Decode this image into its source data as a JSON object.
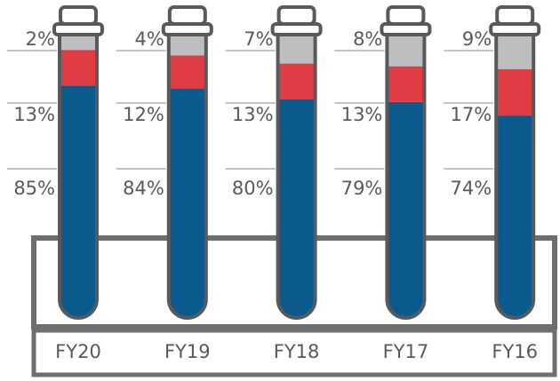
{
  "chart_data": {
    "type": "tube-stack",
    "categories": [
      "FY20",
      "FY19",
      "FY18",
      "FY17",
      "FY16"
    ],
    "series": [
      {
        "color": "#bcbec0",
        "values": [
          2,
          4,
          7,
          8,
          9
        ],
        "value_labels": [
          "2%",
          "4%",
          "7%",
          "8%",
          "9%"
        ]
      },
      {
        "color": "#e03c44",
        "values": [
          13,
          12,
          13,
          13,
          17
        ],
        "value_labels": [
          "13%",
          "12%",
          "13%",
          "13%",
          "17%"
        ]
      },
      {
        "color": "#0b5a8e",
        "values": [
          85,
          84,
          80,
          79,
          74
        ],
        "value_labels": [
          "85%",
          "84%",
          "80%",
          "79%",
          "74%"
        ]
      }
    ],
    "ylim": [
      0,
      100
    ]
  }
}
